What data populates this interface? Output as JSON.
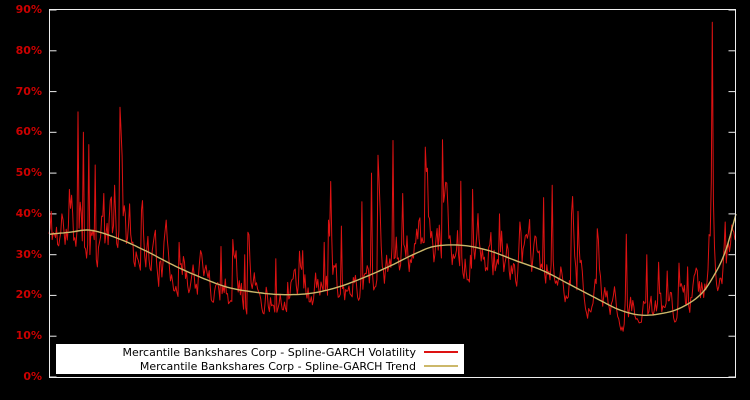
{
  "chart_data": {
    "type": "line",
    "title": "",
    "xlabel": "",
    "ylabel": "",
    "x_range": [
      0,
      1
    ],
    "ylim": [
      0,
      90
    ],
    "grid": false,
    "background_color": "#000000",
    "frame_color": "#eeeeee",
    "tick_label_color": "#cc0000",
    "yticks": [
      {
        "value": 0,
        "label": "0%"
      },
      {
        "value": 10,
        "label": "10%"
      },
      {
        "value": 20,
        "label": "20%"
      },
      {
        "value": 30,
        "label": "30%"
      },
      {
        "value": 40,
        "label": "40%"
      },
      {
        "value": 50,
        "label": "50%"
      },
      {
        "value": 60,
        "label": "60%"
      },
      {
        "value": 70,
        "label": "70%"
      },
      {
        "value": 80,
        "label": "80%"
      },
      {
        "value": 90,
        "label": "90%"
      }
    ],
    "legend": {
      "position": "bottom-center",
      "background": "#ffffff",
      "text_color": "#000000"
    },
    "series": [
      {
        "name": "Mercantile Bankshares Corp - Spline-GARCH Volatility",
        "color": "#dd1212",
        "style": "noisy-line",
        "line_width": 1
      },
      {
        "name": "Mercantile Bankshares Corp - Spline-GARCH Trend",
        "color": "#ccb86a",
        "style": "smooth-line",
        "line_width": 1.4
      }
    ],
    "trend_control_points": [
      {
        "x": 0.0,
        "y": 35.0
      },
      {
        "x": 0.03,
        "y": 35.5
      },
      {
        "x": 0.06,
        "y": 36.0
      },
      {
        "x": 0.1,
        "y": 34.0
      },
      {
        "x": 0.14,
        "y": 31.0
      },
      {
        "x": 0.18,
        "y": 27.5
      },
      {
        "x": 0.22,
        "y": 24.5
      },
      {
        "x": 0.26,
        "y": 22.0
      },
      {
        "x": 0.3,
        "y": 20.8
      },
      {
        "x": 0.34,
        "y": 20.2
      },
      {
        "x": 0.38,
        "y": 20.5
      },
      {
        "x": 0.42,
        "y": 22.0
      },
      {
        "x": 0.46,
        "y": 24.5
      },
      {
        "x": 0.5,
        "y": 27.5
      },
      {
        "x": 0.53,
        "y": 30.0
      },
      {
        "x": 0.56,
        "y": 32.0
      },
      {
        "x": 0.6,
        "y": 32.3
      },
      {
        "x": 0.64,
        "y": 31.0
      },
      {
        "x": 0.68,
        "y": 28.5
      },
      {
        "x": 0.72,
        "y": 26.0
      },
      {
        "x": 0.76,
        "y": 22.5
      },
      {
        "x": 0.8,
        "y": 19.0
      },
      {
        "x": 0.83,
        "y": 16.5
      },
      {
        "x": 0.86,
        "y": 15.2
      },
      {
        "x": 0.89,
        "y": 15.5
      },
      {
        "x": 0.92,
        "y": 17.0
      },
      {
        "x": 0.95,
        "y": 20.5
      },
      {
        "x": 0.97,
        "y": 25.5
      },
      {
        "x": 0.985,
        "y": 31.0
      },
      {
        "x": 1.0,
        "y": 40.0
      }
    ],
    "volatility_model": {
      "points": 640,
      "seed": 11,
      "ar": 0.7,
      "noise_sd": 0.17,
      "jump_prob": 0.02,
      "jump_scale": 0.45,
      "jump_base": 0.35,
      "min": 9.5,
      "max": 88
    },
    "volatility_spikes": [
      {
        "x": 0.018,
        "y": 40
      },
      {
        "x": 0.03,
        "y": 46
      },
      {
        "x": 0.042,
        "y": 65
      },
      {
        "x": 0.05,
        "y": 60
      },
      {
        "x": 0.058,
        "y": 57
      },
      {
        "x": 0.068,
        "y": 52
      },
      {
        "x": 0.08,
        "y": 45
      },
      {
        "x": 0.095,
        "y": 47
      },
      {
        "x": 0.11,
        "y": 42
      },
      {
        "x": 0.135,
        "y": 41
      },
      {
        "x": 0.155,
        "y": 36
      },
      {
        "x": 0.19,
        "y": 33
      },
      {
        "x": 0.22,
        "y": 31
      },
      {
        "x": 0.25,
        "y": 32
      },
      {
        "x": 0.285,
        "y": 30
      },
      {
        "x": 0.33,
        "y": 29
      },
      {
        "x": 0.37,
        "y": 31
      },
      {
        "x": 0.4,
        "y": 33
      },
      {
        "x": 0.425,
        "y": 37
      },
      {
        "x": 0.455,
        "y": 43
      },
      {
        "x": 0.47,
        "y": 50
      },
      {
        "x": 0.5,
        "y": 58
      },
      {
        "x": 0.515,
        "y": 45
      },
      {
        "x": 0.55,
        "y": 40
      },
      {
        "x": 0.575,
        "y": 42
      },
      {
        "x": 0.6,
        "y": 48
      },
      {
        "x": 0.617,
        "y": 46
      },
      {
        "x": 0.655,
        "y": 40
      },
      {
        "x": 0.685,
        "y": 38
      },
      {
        "x": 0.72,
        "y": 44
      },
      {
        "x": 0.733,
        "y": 47
      },
      {
        "x": 0.76,
        "y": 40
      },
      {
        "x": 0.8,
        "y": 30
      },
      {
        "x": 0.84,
        "y": 35
      },
      {
        "x": 0.87,
        "y": 30
      },
      {
        "x": 0.9,
        "y": 26
      },
      {
        "x": 0.93,
        "y": 27
      },
      {
        "x": 0.965,
        "y": 87
      },
      {
        "x": 0.985,
        "y": 38
      }
    ]
  }
}
